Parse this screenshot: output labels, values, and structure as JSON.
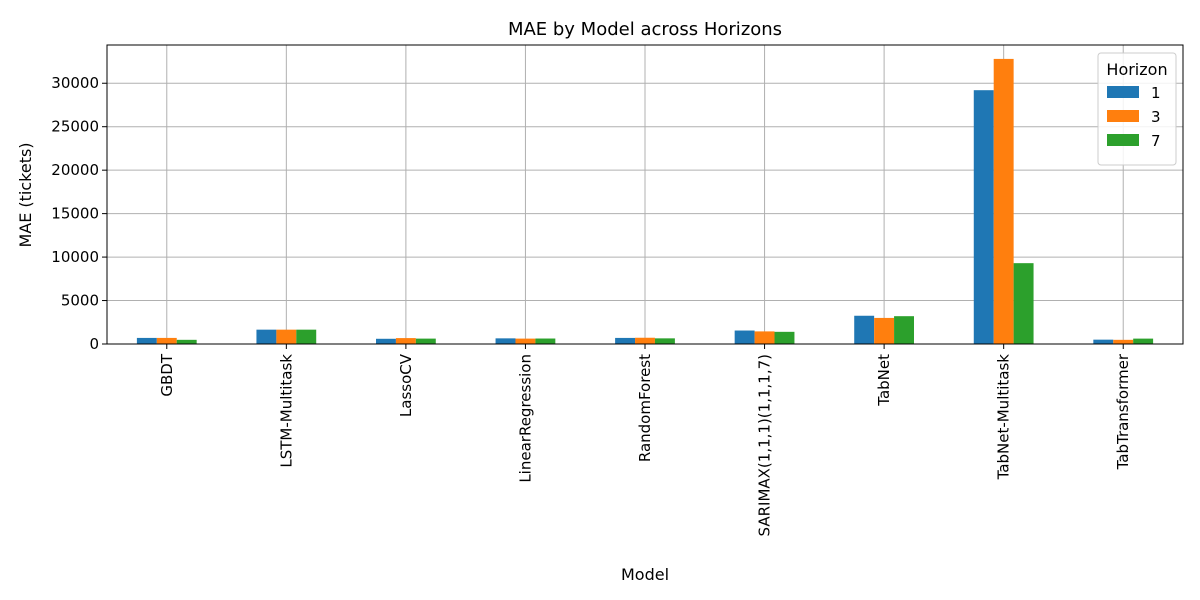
{
  "chart_data": {
    "type": "bar",
    "title": "MAE by Model across Horizons",
    "xlabel": "Model",
    "ylabel": "MAE (tickets)",
    "ylim": [
      0,
      34400
    ],
    "yticks": [
      0,
      5000,
      10000,
      15000,
      20000,
      25000,
      30000
    ],
    "grid": true,
    "legend_title": "Horizon",
    "legend_position": "top-right",
    "categories": [
      "GBDT",
      "LSTM-Multitask",
      "LassoCV",
      "LinearRegression",
      "RandomForest",
      "SARIMAX(1,1,1)(1,1,1,7)",
      "TabNet",
      "TabNet-Multitask",
      "TabTransformer"
    ],
    "series": [
      {
        "name": "1",
        "color": "#1f77b4",
        "values": [
          700,
          1650,
          600,
          650,
          700,
          1550,
          3250,
          29200,
          500
        ]
      },
      {
        "name": "3",
        "color": "#ff7f0e",
        "values": [
          700,
          1650,
          680,
          620,
          720,
          1450,
          3000,
          32800,
          480
        ]
      },
      {
        "name": "7",
        "color": "#2ca02c",
        "values": [
          480,
          1650,
          620,
          630,
          650,
          1400,
          3200,
          9300,
          620
        ]
      }
    ]
  }
}
